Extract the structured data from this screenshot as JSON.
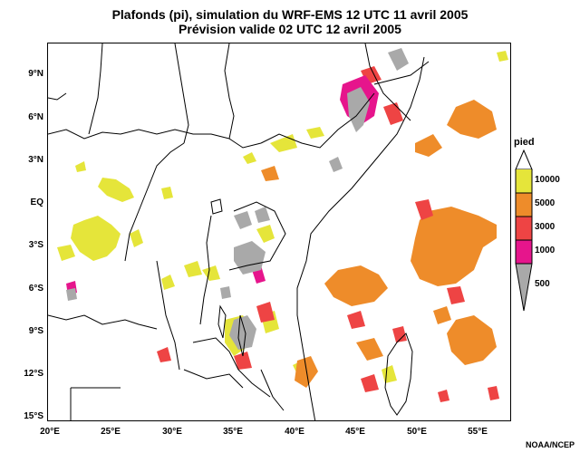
{
  "title_line1": "Plafonds (pi), simulation du WRF-EMS 12 UTC 11 avril 2005",
  "title_line2": "Prévision valide 02 UTC 12 avril 2005",
  "lat_ticks": [
    "9°N",
    "6°N",
    "3°N",
    "EQ",
    "3°S",
    "6°S",
    "9°S",
    "12°S",
    "15°S"
  ],
  "lon_ticks": [
    "20°E",
    "25°E",
    "30°E",
    "35°E",
    "40°E",
    "45°E",
    "50°E",
    "55°E"
  ],
  "legend": {
    "title": "pied",
    "levels": [
      {
        "label": "10000",
        "color": "#e5e53a"
      },
      {
        "label": "5000",
        "color": "#ee8c2a"
      },
      {
        "label": "3000",
        "color": "#ee4444"
      },
      {
        "label": "1000",
        "color": "#e6158c"
      },
      {
        "label": "500",
        "color": "#a9a9a9"
      }
    ]
  },
  "credit": "NOAA/NCEP"
}
